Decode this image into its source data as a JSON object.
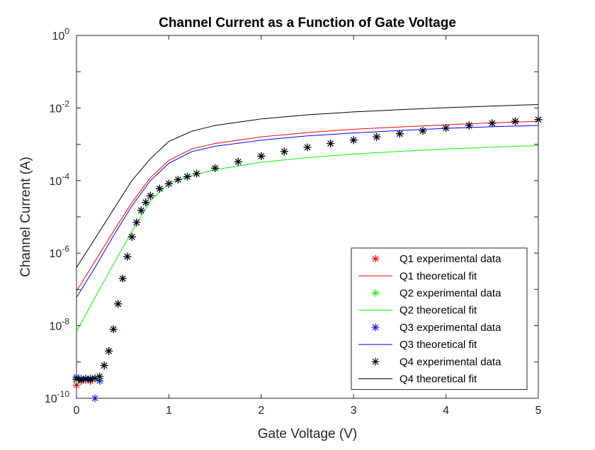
{
  "chart_data": {
    "type": "scatter",
    "title": "Channel Current as a Function of Gate Voltage",
    "xlabel": "Gate Voltage (V)",
    "ylabel": "Channel Current (A)",
    "xlim": [
      0,
      5
    ],
    "ylim": [
      1e-10,
      1
    ],
    "yscale": "log",
    "grid": false,
    "legend_position": "bottom-right",
    "x_ticks": [
      {
        "value": 0,
        "label": "0"
      },
      {
        "value": 1,
        "label": "1"
      },
      {
        "value": 2,
        "label": "2"
      },
      {
        "value": 3,
        "label": "3"
      },
      {
        "value": 4,
        "label": "4"
      },
      {
        "value": 5,
        "label": "5"
      }
    ],
    "y_ticks": [
      {
        "value": 1e-10,
        "base": "10",
        "exp": "-10"
      },
      {
        "value": 1e-08,
        "base": "10",
        "exp": "-8"
      },
      {
        "value": 1e-06,
        "base": "10",
        "exp": "-6"
      },
      {
        "value": 0.0001,
        "base": "10",
        "exp": "-4"
      },
      {
        "value": 0.01,
        "base": "10",
        "exp": "-2"
      },
      {
        "value": 1,
        "base": "10",
        "exp": "0"
      }
    ],
    "experimental_x": [
      0,
      0.05,
      0.1,
      0.15,
      0.2,
      0.25,
      0.3,
      0.35,
      0.4,
      0.45,
      0.5,
      0.55,
      0.6,
      0.65,
      0.7,
      0.75,
      0.8,
      0.9,
      1.0,
      1.1,
      1.2,
      1.3,
      1.5,
      1.75,
      2.0,
      2.25,
      2.5,
      2.75,
      3.0,
      3.25,
      3.5,
      3.75,
      4.0,
      4.25,
      4.5,
      4.75,
      5.0
    ],
    "series": [
      {
        "name": "Q1 experimental data",
        "kind": "experimental",
        "color": "#ff0000",
        "y": [
          2.3e-10,
          3e-10,
          3.2e-10,
          3e-10,
          3.5e-10,
          3.5e-10,
          8e-10,
          2e-09,
          8e-09,
          4e-08,
          2e-07,
          8e-07,
          2.8e-06,
          7e-06,
          1.5e-05,
          2.5e-05,
          3.8e-05,
          6e-05,
          8.2e-05,
          0.000106,
          0.000128,
          0.000155,
          0.00022,
          0.00033,
          0.00047,
          0.00063,
          0.00082,
          0.00105,
          0.0013,
          0.0016,
          0.00195,
          0.00235,
          0.0028,
          0.0033,
          0.0038,
          0.0043,
          0.0048
        ]
      },
      {
        "name": "Q1 theoretical fit",
        "kind": "theoretical",
        "color": "#ff0000",
        "x": [
          0,
          0.2,
          0.4,
          0.6,
          0.8,
          1.0,
          1.25,
          1.5,
          2.0,
          2.5,
          3.0,
          3.5,
          4.0,
          4.5,
          5.0
        ],
        "y": [
          9e-08,
          6e-07,
          4e-06,
          2.5e-05,
          0.00012,
          0.00036,
          0.00075,
          0.00105,
          0.0016,
          0.0021,
          0.0026,
          0.003,
          0.00345,
          0.0039,
          0.0043
        ]
      },
      {
        "name": "Q2 experimental data",
        "kind": "experimental",
        "color": "#00ff00",
        "y": [
          3.3e-10,
          3.3e-10,
          3.4e-10,
          3.5e-10,
          3.5e-10,
          3.5e-10,
          8e-10,
          2e-09,
          8e-09,
          4e-08,
          2e-07,
          8e-07,
          2.8e-06,
          7e-06,
          1.5e-05,
          2.5e-05,
          3.8e-05,
          6e-05,
          8.2e-05,
          0.000106,
          0.000128,
          0.000155,
          0.00022,
          0.00033,
          0.00047,
          0.00063,
          0.00082,
          0.00105,
          0.0013,
          0.0016,
          0.00195,
          0.00235,
          0.0028,
          0.0033,
          0.0038,
          0.0043,
          0.0048
        ]
      },
      {
        "name": "Q2 theoretical fit",
        "kind": "theoretical",
        "color": "#00ff00",
        "x": [
          0,
          0.2,
          0.4,
          0.6,
          0.8,
          1.0,
          1.25,
          1.5,
          2.0,
          2.5,
          3.0,
          3.5,
          4.0,
          4.5,
          5.0
        ],
        "y": [
          7e-09,
          6e-08,
          5e-07,
          4e-06,
          2.8e-05,
          8.5e-05,
          0.00014,
          0.0002,
          0.00032,
          0.00043,
          0.00054,
          0.00064,
          0.00074,
          0.00083,
          0.00092
        ]
      },
      {
        "name": "Q3 experimental data",
        "kind": "experimental",
        "color": "#0000ff",
        "y": [
          3.8e-10,
          3.5e-10,
          3.3e-10,
          3.5e-10,
          1e-10,
          3e-10,
          8e-10,
          2e-09,
          8e-09,
          4e-08,
          2e-07,
          8e-07,
          2.8e-06,
          7e-06,
          1.5e-05,
          2.5e-05,
          3.8e-05,
          6e-05,
          8.2e-05,
          0.000106,
          0.000128,
          0.000155,
          0.00022,
          0.00033,
          0.00047,
          0.00063,
          0.00082,
          0.00105,
          0.0013,
          0.0016,
          0.00195,
          0.00235,
          0.0028,
          0.0033,
          0.0038,
          0.0043,
          0.0048
        ]
      },
      {
        "name": "Q3 theoretical fit",
        "kind": "theoretical",
        "color": "#0000ff",
        "x": [
          0,
          0.2,
          0.4,
          0.6,
          0.8,
          1.0,
          1.25,
          1.5,
          2.0,
          2.5,
          3.0,
          3.5,
          4.0,
          4.5,
          5.0
        ],
        "y": [
          6e-08,
          4e-07,
          3e-06,
          2e-05,
          0.0001,
          0.0003,
          0.00063,
          0.00088,
          0.0013,
          0.0017,
          0.00205,
          0.0024,
          0.00275,
          0.00305,
          0.0033
        ]
      },
      {
        "name": "Q4 experimental data",
        "kind": "experimental",
        "color": "#000000",
        "y": [
          3.4e-10,
          3.2e-10,
          3.5e-10,
          3.3e-10,
          3.6e-10,
          4e-10,
          8e-10,
          2e-09,
          8e-09,
          4e-08,
          2e-07,
          8e-07,
          2.8e-06,
          7e-06,
          1.5e-05,
          2.5e-05,
          3.8e-05,
          6e-05,
          8.2e-05,
          0.000106,
          0.000128,
          0.000155,
          0.00022,
          0.00033,
          0.00047,
          0.00063,
          0.00082,
          0.00105,
          0.0013,
          0.0016,
          0.00195,
          0.00235,
          0.0028,
          0.0033,
          0.0038,
          0.0043,
          0.0048
        ]
      },
      {
        "name": "Q4 theoretical fit",
        "kind": "theoretical",
        "color": "#000000",
        "x": [
          0,
          0.2,
          0.4,
          0.6,
          0.8,
          1.0,
          1.25,
          1.5,
          2.0,
          2.5,
          3.0,
          3.5,
          4.0,
          4.5,
          5.0
        ],
        "y": [
          4e-07,
          2.5e-06,
          1.6e-05,
          0.0001,
          0.0004,
          0.0012,
          0.0023,
          0.0033,
          0.005,
          0.0065,
          0.0078,
          0.009,
          0.0102,
          0.0113,
          0.0125
        ]
      }
    ]
  }
}
